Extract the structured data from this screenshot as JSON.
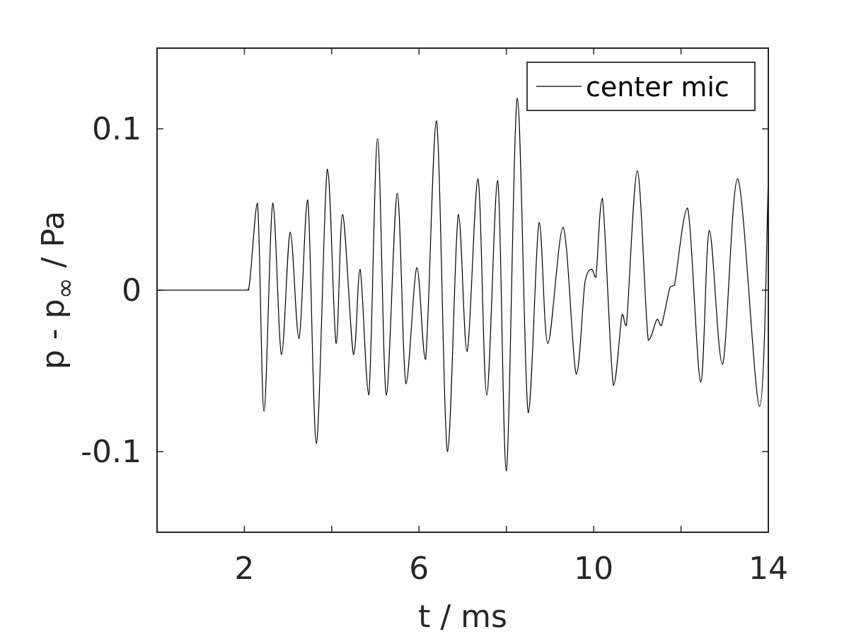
{
  "chart_data": {
    "type": "line",
    "xlabel": "t / ms",
    "ylabel_main": "p - p",
    "ylabel_sub": "∞",
    "ylabel_unit": " / Pa",
    "xlim": [
      0,
      14
    ],
    "ylim": [
      -0.15,
      0.15
    ],
    "xticks": [
      2,
      4,
      6,
      8,
      10,
      12,
      14
    ],
    "xtick_labels": [
      "2",
      "",
      "6",
      "",
      "10",
      "",
      "14"
    ],
    "yticks": [
      -0.1,
      0,
      0.1
    ],
    "ytick_labels": [
      "-0.1",
      "0",
      "0.1"
    ],
    "grid": false,
    "legend_position": "top-right",
    "series": [
      {
        "name": "center mic",
        "color": "#000000",
        "points": [
          [
            0,
            0
          ],
          [
            1.9,
            0
          ],
          [
            2.1,
            0.001
          ],
          [
            2.3,
            0.054
          ],
          [
            2.45,
            -0.075
          ],
          [
            2.65,
            0.054
          ],
          [
            2.85,
            -0.04
          ],
          [
            3.05,
            0.036
          ],
          [
            3.25,
            -0.03
          ],
          [
            3.45,
            0.056
          ],
          [
            3.65,
            -0.095
          ],
          [
            3.9,
            0.075
          ],
          [
            4.1,
            -0.033
          ],
          [
            4.25,
            0.047
          ],
          [
            4.5,
            -0.04
          ],
          [
            4.65,
            0.013
          ],
          [
            4.85,
            -0.065
          ],
          [
            5.05,
            0.094
          ],
          [
            5.25,
            -0.065
          ],
          [
            5.5,
            0.06
          ],
          [
            5.7,
            -0.058
          ],
          [
            5.95,
            0.014
          ],
          [
            6.15,
            -0.043
          ],
          [
            6.4,
            0.105
          ],
          [
            6.65,
            -0.1
          ],
          [
            6.9,
            0.047
          ],
          [
            7.1,
            -0.038
          ],
          [
            7.35,
            0.069
          ],
          [
            7.55,
            -0.065
          ],
          [
            7.8,
            0.068
          ],
          [
            8.0,
            -0.112
          ],
          [
            8.25,
            0.119
          ],
          [
            8.5,
            -0.076
          ],
          [
            8.75,
            0.042
          ],
          [
            8.95,
            -0.033
          ],
          [
            9.3,
            0.039
          ],
          [
            9.6,
            -0.052
          ],
          [
            9.8,
            0.005
          ],
          [
            9.95,
            0.013
          ],
          [
            10.05,
            0.008
          ],
          [
            10.2,
            0.057
          ],
          [
            10.45,
            -0.059
          ],
          [
            10.65,
            -0.015
          ],
          [
            10.75,
            -0.022
          ],
          [
            11.0,
            0.074
          ],
          [
            11.25,
            -0.031
          ],
          [
            11.45,
            -0.018
          ],
          [
            11.55,
            -0.022
          ],
          [
            11.75,
            0.002
          ],
          [
            11.85,
            0.003
          ],
          [
            12.15,
            0.051
          ],
          [
            12.45,
            -0.057
          ],
          [
            12.65,
            0.037
          ],
          [
            12.95,
            -0.046
          ],
          [
            13.3,
            0.069
          ],
          [
            13.8,
            -0.072
          ],
          [
            14.0,
            0.07
          ]
        ]
      }
    ]
  }
}
